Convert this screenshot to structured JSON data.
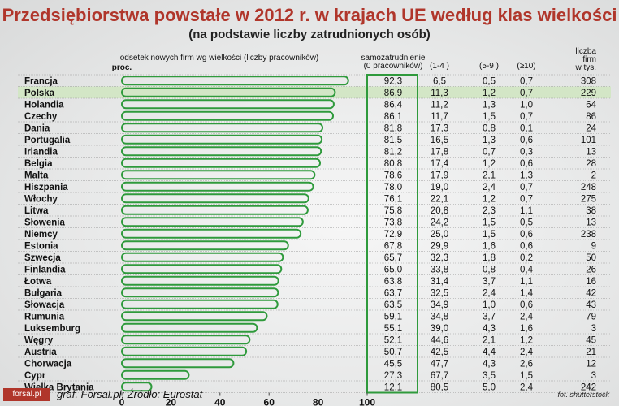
{
  "title": "Przedsiębiorstwa powstałe w 2012 r. w krajach UE według klas wielkości",
  "subtitle": "(na podstawie liczby zatrudnionych osób)",
  "footer": {
    "logo": "forsal.pl",
    "source": "graf. Forsal.pl; Źródło: Eurostat",
    "photo_credit": "fot. shutterstock"
  },
  "colors": {
    "title": "#b0362b",
    "bar_stroke": "#2f9a3c",
    "highlight_row": "#d3e6c6",
    "separator": "#9a9a9a"
  },
  "chart_data": {
    "type": "bar",
    "orientation": "horizontal",
    "bar_header": "odsetek nowych firm wg wielkości (liczby pracowników)",
    "unit_label": "proc.",
    "xlim": [
      0,
      100
    ],
    "xticks": [
      0,
      20,
      40,
      60,
      80,
      100
    ],
    "highlight_category": "Polska",
    "columns": {
      "self": "samozatrudnienie\n(0 pracowników)",
      "c1_4": "(1-4 )",
      "c5_9": "(5-9 )",
      "c10": "(≥10)",
      "firms": "liczba\nfirm\nw tys."
    },
    "rows": [
      {
        "country": "Francja",
        "self": "92,3",
        "c1_4": "6,5",
        "c5_9": "0,5",
        "c10": "0,7",
        "firms": "308",
        "value": 92.3
      },
      {
        "country": "Polska",
        "self": "86,9",
        "c1_4": "11,3",
        "c5_9": "1,2",
        "c10": "0,7",
        "firms": "229",
        "value": 86.9
      },
      {
        "country": "Holandia",
        "self": "86,4",
        "c1_4": "11,2",
        "c5_9": "1,3",
        "c10": "1,0",
        "firms": "64",
        "value": 86.4
      },
      {
        "country": "Czechy",
        "self": "86,1",
        "c1_4": "11,7",
        "c5_9": "1,5",
        "c10": "0,7",
        "firms": "86",
        "value": 86.1
      },
      {
        "country": "Dania",
        "self": "81,8",
        "c1_4": "17,3",
        "c5_9": "0,8",
        "c10": "0,1",
        "firms": "24",
        "value": 81.8
      },
      {
        "country": "Portugalia",
        "self": "81,5",
        "c1_4": "16,5",
        "c5_9": "1,3",
        "c10": "0,6",
        "firms": "101",
        "value": 81.5
      },
      {
        "country": "Irlandia",
        "self": "81,2",
        "c1_4": "17,8",
        "c5_9": "0,7",
        "c10": "0,3",
        "firms": "13",
        "value": 81.2
      },
      {
        "country": "Belgia",
        "self": "80,8",
        "c1_4": "17,4",
        "c5_9": "1,2",
        "c10": "0,6",
        "firms": "28",
        "value": 80.8
      },
      {
        "country": "Malta",
        "self": "78,6",
        "c1_4": "17,9",
        "c5_9": "2,1",
        "c10": "1,3",
        "firms": "2",
        "value": 78.6
      },
      {
        "country": "Hiszpania",
        "self": "78,0",
        "c1_4": "19,0",
        "c5_9": "2,4",
        "c10": "0,7",
        "firms": "248",
        "value": 78.0
      },
      {
        "country": "Włochy",
        "self": "76,1",
        "c1_4": "22,1",
        "c5_9": "1,2",
        "c10": "0,7",
        "firms": "275",
        "value": 76.1
      },
      {
        "country": "Litwa",
        "self": "75,8",
        "c1_4": "20,8",
        "c5_9": "2,3",
        "c10": "1,1",
        "firms": "38",
        "value": 75.8
      },
      {
        "country": "Słowenia",
        "self": "73,8",
        "c1_4": "24,2",
        "c5_9": "1,5",
        "c10": "0,5",
        "firms": "13",
        "value": 73.8
      },
      {
        "country": "Niemcy",
        "self": "72,9",
        "c1_4": "25,0",
        "c5_9": "1,5",
        "c10": "0,6",
        "firms": "238",
        "value": 72.9
      },
      {
        "country": "Estonia",
        "self": "67,8",
        "c1_4": "29,9",
        "c5_9": "1,6",
        "c10": "0,6",
        "firms": "9",
        "value": 67.8
      },
      {
        "country": "Szwecja",
        "self": "65,7",
        "c1_4": "32,3",
        "c5_9": "1,8",
        "c10": "0,2",
        "firms": "50",
        "value": 65.7
      },
      {
        "country": "Finlandia",
        "self": "65,0",
        "c1_4": "33,8",
        "c5_9": "0,8",
        "c10": "0,4",
        "firms": "26",
        "value": 65.0
      },
      {
        "country": "Łotwa",
        "self": "63,8",
        "c1_4": "31,4",
        "c5_9": "3,7",
        "c10": "1,1",
        "firms": "16",
        "value": 63.8
      },
      {
        "country": "Bułgaria",
        "self": "63,7",
        "c1_4": "32,5",
        "c5_9": "2,4",
        "c10": "1,4",
        "firms": "42",
        "value": 63.7
      },
      {
        "country": "Słowacja",
        "self": "63,5",
        "c1_4": "34,9",
        "c5_9": "1,0",
        "c10": "0,6",
        "firms": "43",
        "value": 63.5
      },
      {
        "country": "Rumunia",
        "self": "59,1",
        "c1_4": "34,8",
        "c5_9": "3,7",
        "c10": "2,4",
        "firms": "79",
        "value": 59.1
      },
      {
        "country": "Luksemburg",
        "self": "55,1",
        "c1_4": "39,0",
        "c5_9": "4,3",
        "c10": "1,6",
        "firms": "3",
        "value": 55.1
      },
      {
        "country": "Węgry",
        "self": "52,1",
        "c1_4": "44,6",
        "c5_9": "2,1",
        "c10": "1,2",
        "firms": "45",
        "value": 52.1
      },
      {
        "country": "Austria",
        "self": "50,7",
        "c1_4": "42,5",
        "c5_9": "4,4",
        "c10": "2,4",
        "firms": "21",
        "value": 50.7
      },
      {
        "country": "Chorwacja",
        "self": "45,5",
        "c1_4": "47,7",
        "c5_9": "4,3",
        "c10": "2,6",
        "firms": "12",
        "value": 45.5
      },
      {
        "country": "Cypr",
        "self": "27,3",
        "c1_4": "67,7",
        "c5_9": "3,5",
        "c10": "1,5",
        "firms": "3",
        "value": 27.3
      },
      {
        "country": "Wielka Brytania",
        "self": "12,1",
        "c1_4": "80,5",
        "c5_9": "5,0",
        "c10": "2,4",
        "firms": "242",
        "value": 12.1
      }
    ]
  }
}
